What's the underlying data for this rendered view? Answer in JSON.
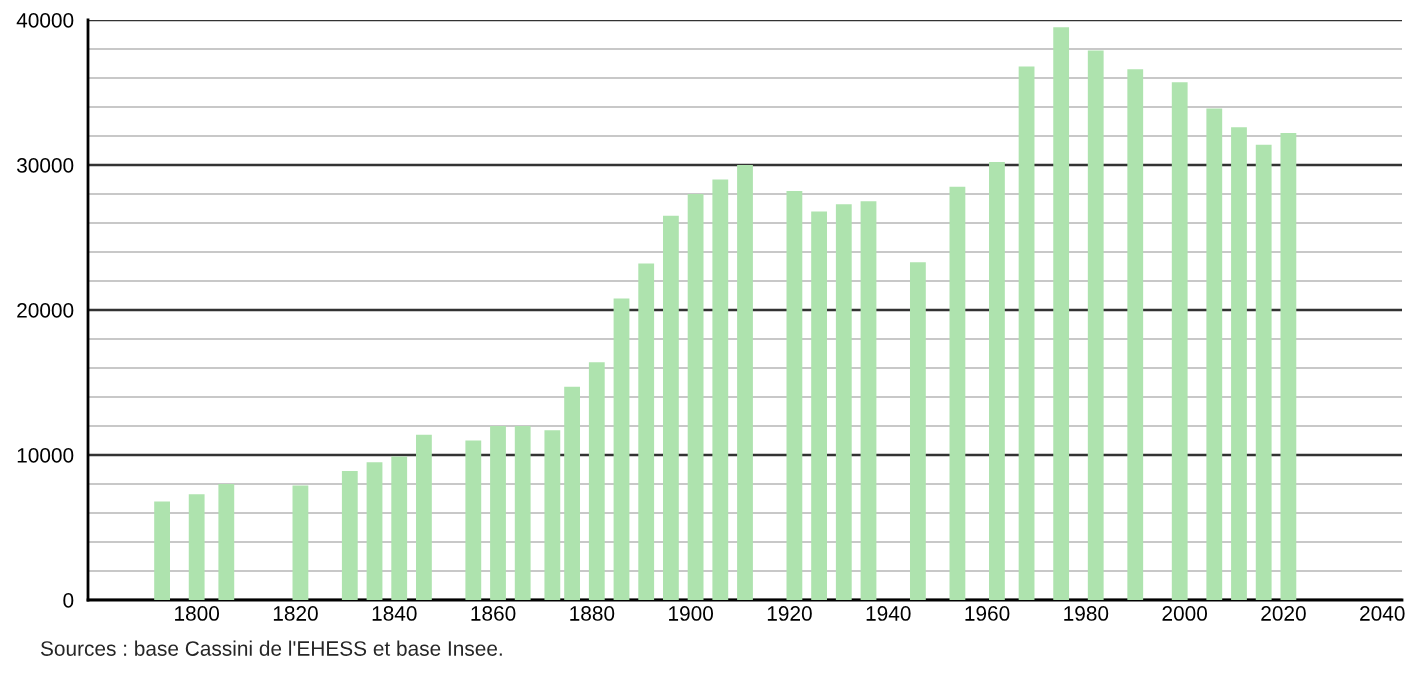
{
  "chart_data": {
    "type": "bar",
    "x": [
      1793,
      1800,
      1806,
      1821,
      1831,
      1836,
      1841,
      1846,
      1856,
      1861,
      1866,
      1872,
      1876,
      1881,
      1886,
      1891,
      1896,
      1901,
      1906,
      1911,
      1921,
      1926,
      1931,
      1936,
      1946,
      1954,
      1962,
      1968,
      1975,
      1982,
      1990,
      1999,
      2006,
      2011,
      2016,
      2021
    ],
    "values": [
      6800,
      7300,
      8000,
      7900,
      8900,
      9500,
      9900,
      11400,
      11000,
      12000,
      12000,
      11700,
      14700,
      16400,
      20800,
      23200,
      26500,
      28000,
      29000,
      30000,
      28200,
      26800,
      27300,
      27500,
      23300,
      28500,
      30200,
      36800,
      39500,
      37900,
      36600,
      35700,
      33900,
      32600,
      31400,
      32200
    ],
    "color": "#aee3ae",
    "xlim": [
      1778,
      2044
    ],
    "xticks": [
      1800,
      1820,
      1840,
      1860,
      1880,
      1900,
      1920,
      1940,
      1960,
      1980,
      2000,
      2020,
      2040
    ],
    "ylim": [
      0,
      40000
    ],
    "yticks": [
      0,
      {
        "value": 2000,
        "label": null
      },
      {
        "value": 4000,
        "label": null
      },
      {
        "value": 6000,
        "label": null
      },
      {
        "value": 8000,
        "label": null
      },
      10000,
      {
        "value": 12000,
        "label": null
      },
      {
        "value": 14000,
        "label": null
      },
      {
        "value": 16000,
        "label": null
      },
      {
        "value": 18000,
        "label": null
      },
      20000,
      {
        "value": 22000,
        "label": null
      },
      {
        "value": 24000,
        "label": null
      },
      {
        "value": 26000,
        "label": null
      },
      {
        "value": 28000,
        "label": null
      },
      30000,
      {
        "value": 32000,
        "label": null
      },
      {
        "value": 34000,
        "label": null
      },
      {
        "value": 36000,
        "label": null
      },
      {
        "value": 38000,
        "label": null
      },
      40000
    ],
    "grid": "y",
    "legend": false,
    "annotations": [
      "Sources : base Cassini de l'EHESS et base Insee."
    ]
  }
}
